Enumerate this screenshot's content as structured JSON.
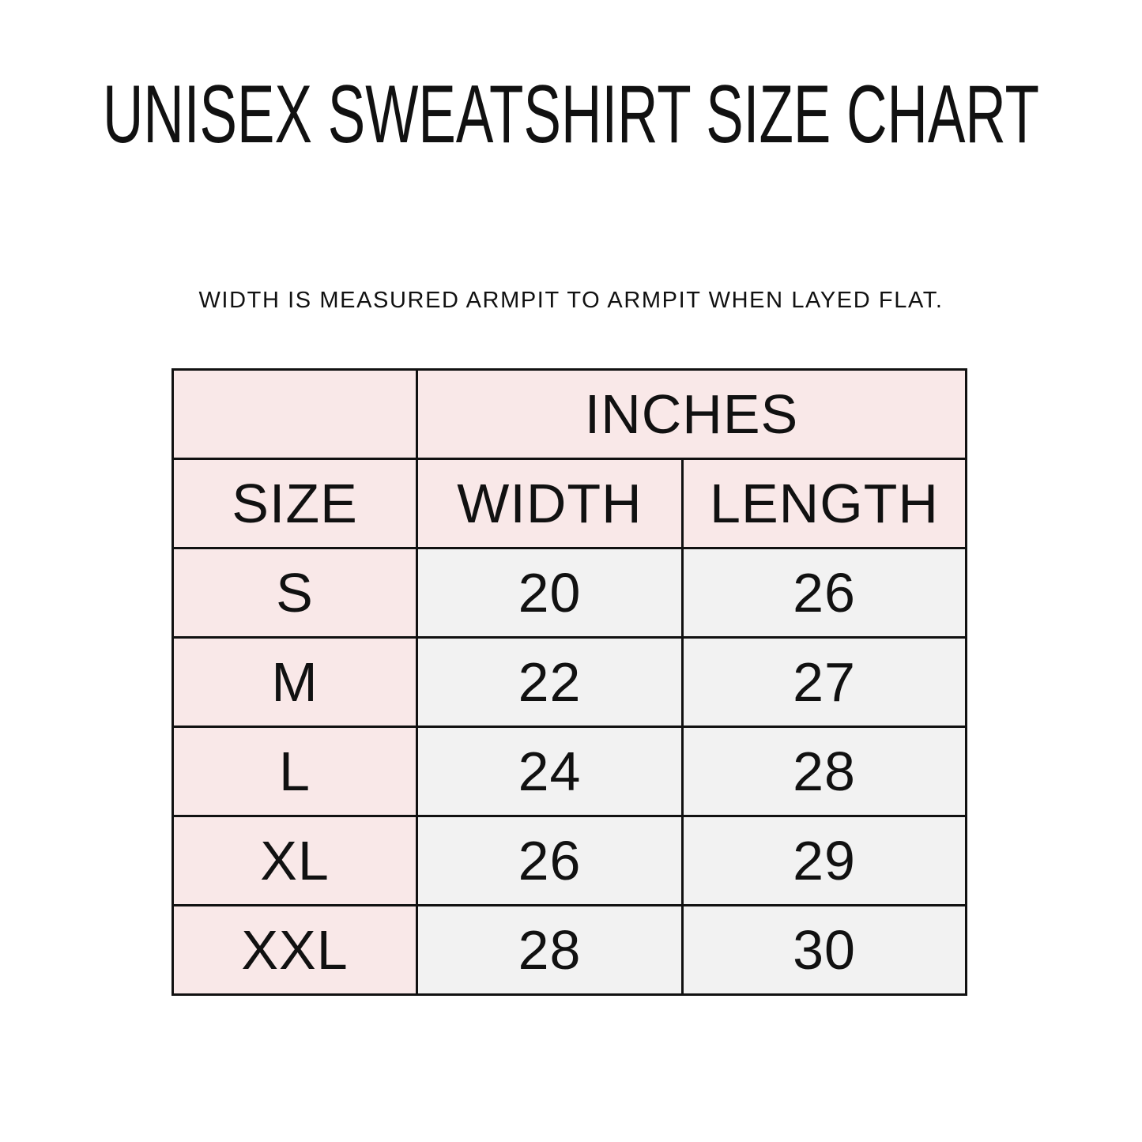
{
  "title": "UNISEX SWEATSHIRT SIZE CHART",
  "subtitle": "WIDTH IS MEASURED ARMPIT TO ARMPIT WHEN LAYED FLAT.",
  "table": {
    "unit_header": "INCHES",
    "columns": [
      "SIZE",
      "WIDTH",
      "LENGTH"
    ],
    "rows": [
      [
        "S",
        "20",
        "26"
      ],
      [
        "M",
        "22",
        "27"
      ],
      [
        "L",
        "24",
        "28"
      ],
      [
        "XL",
        "26",
        "29"
      ],
      [
        "XXL",
        "28",
        "30"
      ]
    ]
  },
  "colors": {
    "header_bg": "#f9e8e8",
    "cell_bg": "#f2f2f2",
    "border": "#111111"
  }
}
